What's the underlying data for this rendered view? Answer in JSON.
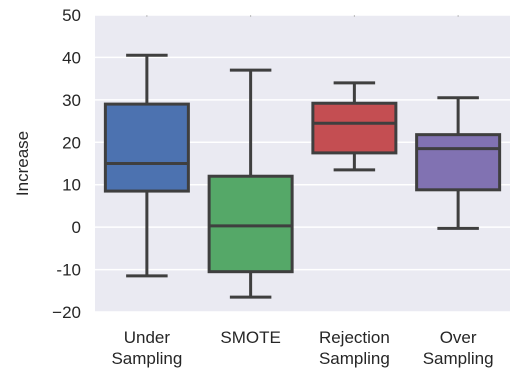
{
  "chart_data": {
    "type": "box",
    "title": "",
    "xlabel": "",
    "ylabel": "Increase",
    "ylim": [
      -20,
      50
    ],
    "yticks": [
      -20,
      -10,
      0,
      10,
      20,
      30,
      40,
      50
    ],
    "ytick_labels": [
      "−20",
      "-10",
      "0",
      "10",
      "20",
      "30",
      "40",
      "50"
    ],
    "grid": true,
    "categories": [
      [
        "Under",
        "Sampling"
      ],
      [
        "SMOTE"
      ],
      [
        "Rejection",
        "Sampling"
      ],
      [
        "Over",
        "Sampling"
      ]
    ],
    "boxes": [
      {
        "whisker_low": -11.5,
        "q1": 8.5,
        "median": 15,
        "q3": 29,
        "whisker_high": 40.5
      },
      {
        "whisker_low": -16.5,
        "q1": -10.5,
        "median": 0.3,
        "q3": 12,
        "whisker_high": 37
      },
      {
        "whisker_low": 13.5,
        "q1": 17.5,
        "median": 24.5,
        "q3": 29.2,
        "whisker_high": 34
      },
      {
        "whisker_low": -0.3,
        "q1": 8.8,
        "median": 18.5,
        "q3": 21.8,
        "whisker_high": 30.5
      }
    ],
    "colors": [
      "#4c72b0",
      "#55a868",
      "#c44e52",
      "#8172b2"
    ],
    "background_color": "#eaeaf2",
    "line_color": "#3f3f3f"
  }
}
